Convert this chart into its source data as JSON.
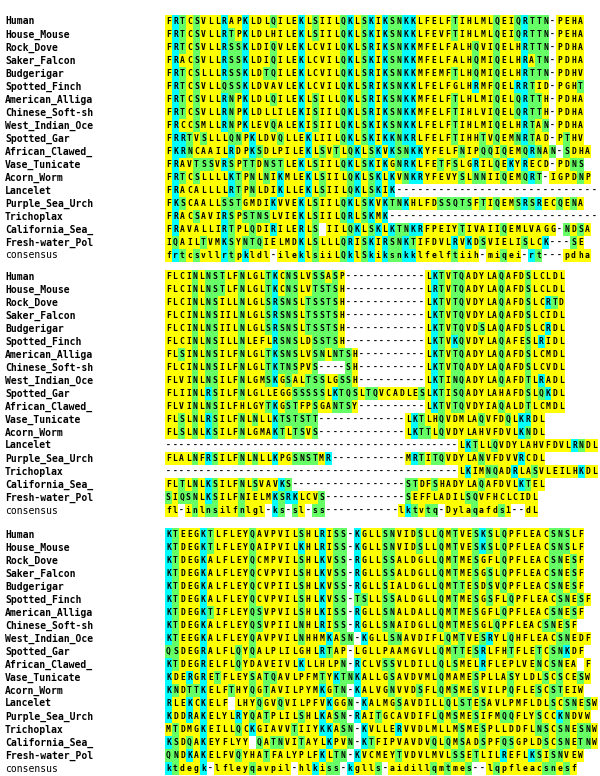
{
  "blocks": [
    {
      "species": [
        "Human",
        "House_Mouse",
        "Rock_Dove",
        "Saker_Falcon",
        "Budgerigar",
        "Spotted_Finch",
        "American_Alliga",
        "Chinese_Soft-sh",
        "West_Indian_Oce",
        "Spotted_Gar",
        "African_Clawed_",
        "Vase_Tunicate",
        "Acorn_Worm",
        "Lancelet",
        "Purple_Sea_Urch",
        "Trichoplax",
        "California_Sea_",
        "Fresh-water_Pol",
        "consensus"
      ],
      "sequences": [
        "FRTCSVLLRAPKLDLQILEKLSIILQKLSKIKSNKKLFELFTIHLMLQEIQRTTN-PEHA",
        "FRTCSVLLRTPKLDLHILEKLSIILQKLSKIKSNKKLFEVFTIHLMLQEIQRTTN-PEHA",
        "FRTCSVLLRSSKLDIQVLEKLCVILQKLSRIKSNKKMFELFALHQVIQELHRTTN-PDHA",
        "FRACSVLLRSSKLDIQILEKLCVILQKLSKIKSNKKMFELFALHQMIQELHRATN-PDHA",
        "FRTCSLLLRSSKLDTQILEKLCVILQKLSRIKSNKKMFEMFTLHQMIQELHRTTN-PDHV",
        "FRTCSVLLQSSKLDVAVLEKLCVILQKLSRIKSNKKLFELFGLHRMFQELRRTID-PGHT",
        "FRTCSVLLRNPKLDLQILEKLSILLQKLSRIKSNKKMFELFTLHLMIQELQRTTH-PDHA",
        "FRTCSVLLRNPKLDLLILEKISIILQKLSRIKSNKKMFELFTIHLVIQELQRTTH-PDHA",
        "FRCCSMLLRNPKLEVQALEKISIILQKLSKIKSNKKLFELFTIHLMIQELHRTAN-PDHA",
        "FRRTVSLLLQNPKLDVQLLEKLIILQKLSKIKKNKRLFELFTIHHTVQEMNRTAD-PTHV",
        "FKRNCAAILRDPKSDLPILEKLSVTLQKLSKVKSNKKYFELFNIPQQIQEMQRNAN-SDHA",
        "FRAVTSSVRSPTTDNSTLEKLSIILQKLSKIKGNRKLFETFSLGRILQEKYRECD-PDNS",
        "FRTCSLLLLKTPNLNIKMLEKLSIILQKLSKLKVNKRYFEVYSLNNIIQEMQRT-IGPDNP",
        "FRACALLLLRTPNLDIKLLEKLSIILQKLSKIK-----------------------------",
        "FKSCAALLSSTGMDIKVVEKLSIILQKLSKVKTNKHLFDSSQTSFTIQEMSRSRECQENA",
        "FRACSAVIRSPSTNSLVIEKLSIILQRLSKMK------------------------------",
        "FRAVALLIRTPLQDIRILERLS IILQKLSKLKTNKRFPEIYTIVAIIQEMLVAGG-NDSA",
        "IQAILTVMKSYNTQIELMDKLSLLLQRISKIRSNKTIFDVLRVKDSVIELISLCK---SE",
        "frtcsvllrtpkldl-ileklsiiLQklSkiksnkklfelftiih-miqei-rt---pdha"
      ]
    },
    {
      "species": [
        "Human",
        "House_Mouse",
        "Rock_Dove",
        "Saker_Falcon",
        "Budgerigar",
        "Spotted_Finch",
        "American_Alliga",
        "Chinese_Soft-sh",
        "West_Indian_Oce",
        "Spotted_Gar",
        "African_Clawed_",
        "Vase_Tunicate",
        "Acorn_Worm",
        "Lancelet",
        "Purple_Sea_Urch",
        "Trichoplax",
        "California_Sea_",
        "Fresh-water_Pol",
        "consensus"
      ],
      "sequences": [
        "FLCINLNSTLFNLGLTKCNSLVSSASP------------LKTVTQADYLAQAFDSLCLDL",
        "FLCINLNSTLFNLGLTKCNSLVTSTSH------------LRTVTQADYLAQAFDSLCLDL",
        "FLCINLNSILLNLGLSRSNSLTSSTSH------------LKTVTQVDYLAQAFDSLCRTD",
        "FLCINLNSIILNLGLSRSNSLTSSTSH------------LKTVTQVDYLAQAFDSLCIDL",
        "FLCINLNSIILNLGLSRSNSLTSSTSH------------LKTVTQVDSLAQAFDSLCRDL",
        "FLCINLNSILLNLEFLRSNSLDSSTSH------------LKTVKQVDYLAQAFESLRIDL",
        "FLSINLNSILFNLGLTKSNSLVSNLNTSH----------LKTVTQADYLAQAFDSLCMDL",
        "FLCINLNSILFNLGLTKTNSPVS----SH----------LKTVTQADYLAQAFDSLCVDL",
        "FLVINLNSILFNLGMSKGSALTSSLGSSH----------LKTINQADYLAQAFDTLRADL",
        "FLIINLRSILFNLGLLEGGSSSSSLKTQSLTQVCADLESLKTISQADYLAHAFDSLQKDL",
        "FLVINLNSILFHLGYTKGSTFPSGANTSY----------LKTVTQVDYIAQALDTLCMDL",
        "FLSLNLRSILFNLNLLKTSTSTT-------------LKTLHQVDMLAQVFDQLKRDL",
        "FLSLNLKSILFNLGMAKTLTSVS-------------LKTTLQVDYLAHVFDVLKNDL",
        "--------------------------------------------LKTLLQVDYLAHVFDVLRNDL",
        "FLALNFRSILFNLNLLKPGSNSTMR-----------MRTITQVDYLANVFDVVRCDL",
        "--------------------------------------------LKIMNQADRLASVLEILHKDL",
        "FLTLNLKSILFNLSVAVKS-----------------STDFSHADYLAQAFDVLKTEL",
        "SIQSNLKSILFNIELMKSRKLCVS------------SEFFLADILSQVFHCLCIDL",
        "fl-inlnsilfnlgl-ks-sl-ss-----------lktvtq-Dylaqafds1--dL"
      ]
    },
    {
      "species": [
        "Human",
        "House_Mouse",
        "Rock_Dove",
        "Saker_Falcon",
        "Budgerigar",
        "Spotted_Finch",
        "American_Alliga",
        "Chinese_Soft-sh",
        "West_Indian_Oce",
        "Spotted_Gar",
        "African_Clawed_",
        "Vase_Tunicate",
        "Acorn_Worm",
        "Lancelet",
        "Purple_Sea_Urch",
        "Trichoplax",
        "California_Sea_",
        "Fresh-water_Pol",
        "consensus"
      ],
      "sequences": [
        "KTEEGKTLFLEYQAVPVILSHLRISS-KGLLSNVIDSLLQMTVESKSLQPFLEACSNSLF",
        "KTDEGKTLFLEYQAIPVILKHLRISS-KGLLSNVIDSLLQMTVESKSLQPFLEACSNSLF",
        "KTDEGKALFLEYQCMPVILSHLKVSS-RGLLSSALDGLLQMTMESGFLQPFLEACSNESF",
        "KTDEGKALFLEYQCVPVILSHLKVSS-RGLLSSALDGLLQMTMESGSLQPFLEACSNESF",
        "KTDEGKALFLEYQCVPIILSHLKVSS-RGLLSIALDGLLQMTTESDSVQPFLEACSNESF",
        "KTDEGKALFLEYQCVPVILSHLKVSS-TSLLSSALDGLLQMTMESGSFLQPFLEACSNESF",
        "KTDEGKTIFLEYQSVPVILSHLKISS-RGLLSNALDALLQMTMESGFLQPFLEACSNESF",
        "KTDEGKALFLEYQSVPIILNHLRISS-RGLLSNAIDGLLQMTMESGLQPFLEACSNESF",
        "KTEEGKALFLEYQAVPVILNHHMKASN-KGLLSNAVDIFLQMTVESRYLQHFLEACSNEDF",
        "QSDEGRALFLQYQALPLILGHLRTAP-LGLLPAAMGVLLQMTTESRLFHTFLETCSNKDF",
        "KTDEGRELFLQYDAVEIVLKLLHLPN-RCLVSSVLDILLQLSMELRFLEPLVENCSNEA F",
        "KDERGRETFLEYSATQAVLPFMTYKTNKALLGSAVDVMLQMAMESPLLASYLDLSCSCESW",
        "KNDTTKELFTHYQGTAVILPYMKGTN-KALVGNVVDSFLQMSMESVILPQFLESCSTEIW",
        "RLEKCKELF LHYQGVQVILPFVKGGN-KALMGSAVDILLQLSTESAVLPMFLDLSCSNESW",
        "KDDRAKELYLRYQATPLILSHLKASN-RAITGCAVDIFLQMSMESIFMQQFLYSCCKNDVW",
        "MTDMGKEILLQCKGIAVVTIIYKKASN-KVLLERVVDLMLLMSMESPLLDDFLNSCSNESNW",
        "KSDQAKEYFLYY QATNVITAYLKPVN-KTFIPVAVDVQLQMSADSPFQSGPLDSCSNETNW",
        "QNDKAKELFVQYHATFALYPLFKLTN-KVCMEYTVDVLMVLSSETLILREFLKSISNVEW",
        "ktdegk-lfleyqavpil-hlkiss-kglls-aidillqmtmes--lqpfleacsnesf"
      ]
    }
  ]
}
